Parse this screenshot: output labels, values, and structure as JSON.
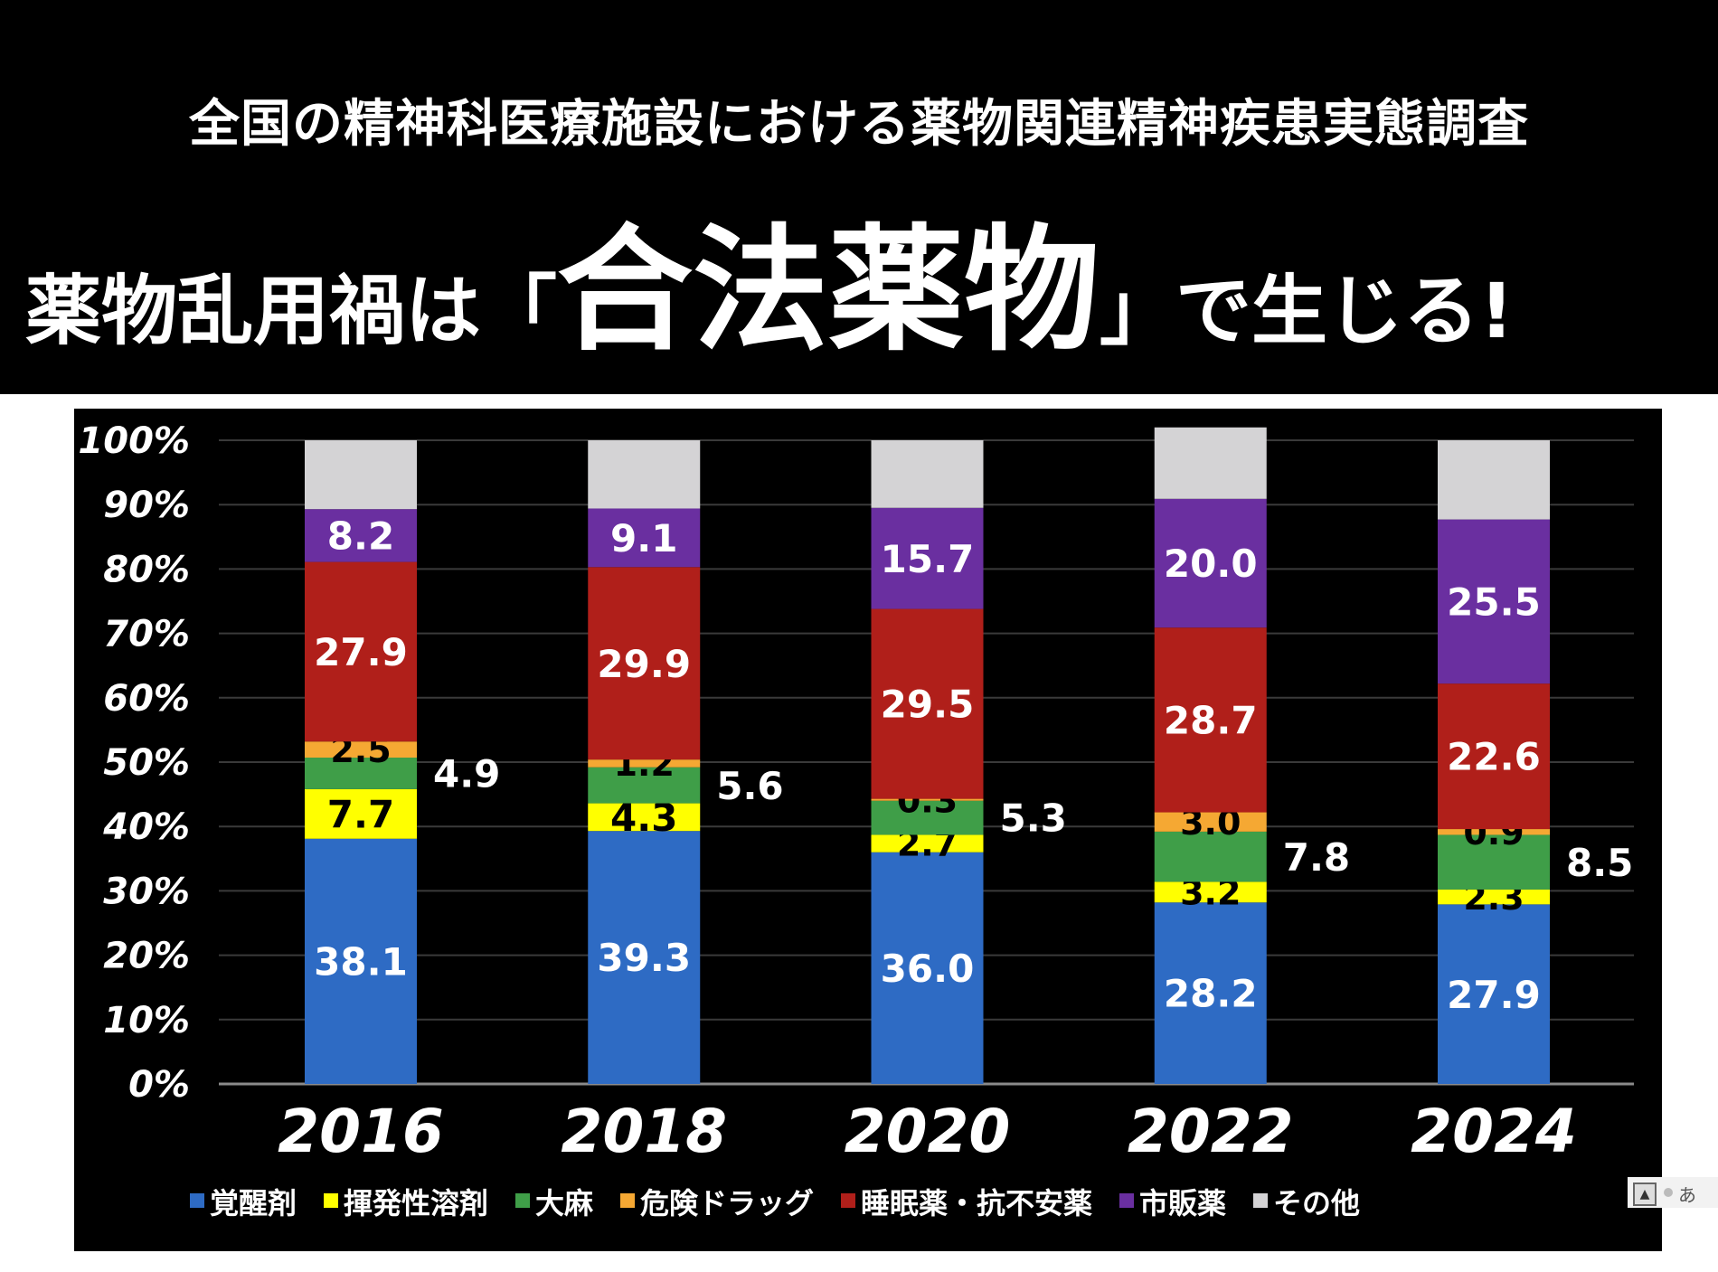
{
  "header": {
    "subtitle": "全国の精神科医療施設における薬物関連精神疾患実態調査",
    "headline_pre": "薬物乱用禍は「",
    "headline_emph": "合法薬物",
    "headline_post": "」で生じる!"
  },
  "chart_data": {
    "type": "bar",
    "stacked": true,
    "title": "",
    "xlabel": "",
    "ylabel": "",
    "ylim": [
      0,
      100
    ],
    "y_ticks": [
      "0%",
      "10%",
      "20%",
      "30%",
      "40%",
      "50%",
      "60%",
      "70%",
      "80%",
      "90%",
      "100%"
    ],
    "grid": true,
    "legend_position": "bottom",
    "categories": [
      "2016",
      "2018",
      "2020",
      "2022",
      "2024"
    ],
    "series": [
      {
        "name": "覚醒剤",
        "color": "#2e6bc4",
        "label_color": "#ffffff",
        "values": [
          38.1,
          39.3,
          36.0,
          28.2,
          27.9
        ],
        "labels": [
          "38.1",
          "39.3",
          "36.0",
          "28.2",
          "27.9"
        ]
      },
      {
        "name": "揮発性溶剤",
        "color": "#ffff00",
        "label_color": "#000000",
        "values": [
          7.7,
          4.3,
          2.7,
          3.2,
          2.3
        ],
        "labels": [
          "7.7",
          "4.3",
          "2.7",
          "3.2",
          "2.3"
        ]
      },
      {
        "name": "大麻",
        "color": "#3f9e48",
        "label_color": "#000000",
        "values": [
          4.9,
          5.6,
          5.3,
          7.8,
          8.5
        ],
        "labels": [
          "4.9",
          "5.6",
          "5.3",
          "7.8",
          "8.5"
        ],
        "label_outside": true
      },
      {
        "name": "危険ドラッグ",
        "color": "#f5a833",
        "label_color": "#000000",
        "values": [
          2.5,
          1.2,
          0.3,
          3.0,
          0.9
        ],
        "labels": [
          "2.5",
          "1.2",
          "0.3",
          "3.0",
          "0.9"
        ]
      },
      {
        "name": "睡眠薬・抗不安薬",
        "color": "#b01f1a",
        "label_color": "#ffffff",
        "values": [
          27.9,
          29.9,
          29.5,
          28.7,
          22.6
        ],
        "labels": [
          "27.9",
          "29.9",
          "29.5",
          "28.7",
          "22.6"
        ]
      },
      {
        "name": "市販薬",
        "color": "#6a2fa0",
        "label_color": "#ffffff",
        "values": [
          8.2,
          9.1,
          15.7,
          20.0,
          25.5
        ],
        "labels": [
          "8.2",
          "9.1",
          "15.7",
          "20.0",
          "25.5"
        ]
      },
      {
        "name": "その他",
        "color": "#d4d3d5",
        "label_color": "#000000",
        "values": [
          10.7,
          10.6,
          10.5,
          11.1,
          12.3
        ],
        "labels": []
      }
    ]
  },
  "widget": {
    "icon": "nav-toggle-icon",
    "label": "あ"
  }
}
